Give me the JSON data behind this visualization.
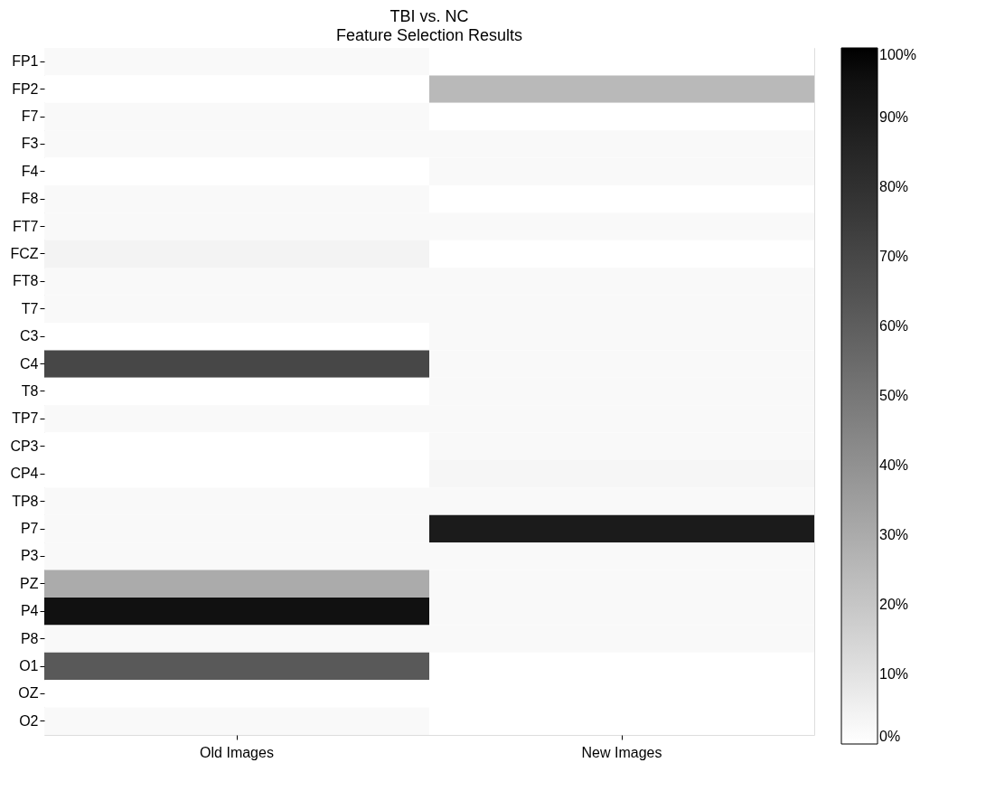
{
  "chart_data": {
    "type": "heatmap",
    "title": "TBI vs. NC",
    "subtitle": "Feature Selection Results",
    "categories": [
      "Old Images",
      "New Images"
    ],
    "y_categories": [
      "FP1",
      "FP2",
      "F7",
      "F3",
      "F4",
      "F8",
      "FT7",
      "FCZ",
      "FT8",
      "T7",
      "C3",
      "C4",
      "T8",
      "TP7",
      "CP3",
      "CP4",
      "TP8",
      "P7",
      "P3",
      "PZ",
      "P4",
      "P8",
      "O1",
      "OZ",
      "O2"
    ],
    "cells": [
      [
        2,
        0
      ],
      [
        0,
        25
      ],
      [
        2,
        0
      ],
      [
        2,
        2
      ],
      [
        0,
        2
      ],
      [
        2,
        0
      ],
      [
        2,
        2
      ],
      [
        4,
        0
      ],
      [
        2,
        2
      ],
      [
        2,
        2
      ],
      [
        0,
        2
      ],
      [
        70,
        2
      ],
      [
        0,
        2
      ],
      [
        2,
        2
      ],
      [
        0,
        2
      ],
      [
        0,
        3
      ],
      [
        2,
        2
      ],
      [
        2,
        90
      ],
      [
        2,
        2
      ],
      [
        30,
        2
      ],
      [
        95,
        2
      ],
      [
        2,
        2
      ],
      [
        62,
        0
      ],
      [
        0,
        0
      ],
      [
        2,
        0
      ]
    ],
    "clim": [
      0,
      100
    ],
    "cticks": [
      {
        "value": 0,
        "label": "0%"
      },
      {
        "value": 10,
        "label": "10%"
      },
      {
        "value": 20,
        "label": "20%"
      },
      {
        "value": 30,
        "label": "30%"
      },
      {
        "value": 40,
        "label": "40%"
      },
      {
        "value": 50,
        "label": "50%"
      },
      {
        "value": 60,
        "label": "60%"
      },
      {
        "value": 70,
        "label": "70%"
      },
      {
        "value": 80,
        "label": "80%"
      },
      {
        "value": 90,
        "label": "90%"
      },
      {
        "value": 100,
        "label": "100%"
      }
    ],
    "grid": false
  }
}
